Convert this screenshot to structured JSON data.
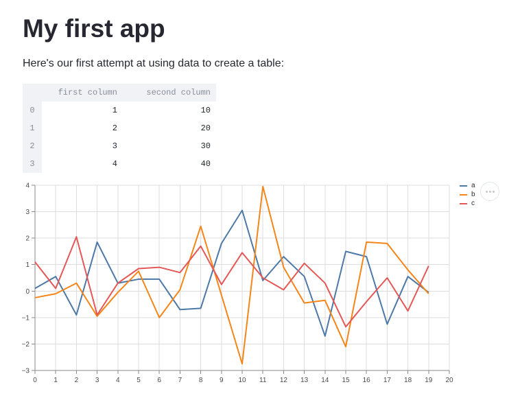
{
  "page": {
    "title": "My first app",
    "intro_text": "Here's our first attempt at using data to create a table:"
  },
  "table": {
    "columns": [
      "first column",
      "second column"
    ],
    "rows": [
      [
        "0",
        "1",
        "10"
      ],
      [
        "1",
        "2",
        "20"
      ],
      [
        "2",
        "3",
        "30"
      ],
      [
        "3",
        "4",
        "40"
      ]
    ]
  },
  "chart_data": {
    "type": "line",
    "title": "",
    "xlabel": "",
    "ylabel": "",
    "xlim": [
      0,
      20
    ],
    "ylim": [
      -3,
      4
    ],
    "x_ticks": [
      0,
      1,
      2,
      3,
      4,
      5,
      6,
      7,
      8,
      9,
      10,
      11,
      12,
      13,
      14,
      15,
      16,
      17,
      18,
      19,
      20
    ],
    "y_ticks": [
      -3,
      -2,
      -1,
      0,
      1,
      2,
      3,
      4
    ],
    "grid": true,
    "legend_position": "top-right",
    "x": [
      0,
      1,
      2,
      3,
      4,
      5,
      6,
      7,
      8,
      9,
      10,
      11,
      12,
      13,
      14,
      15,
      16,
      17,
      18,
      19
    ],
    "series": [
      {
        "name": "a",
        "color": "#4c78a8",
        "values": [
          0.1,
          0.55,
          -0.9,
          1.85,
          0.3,
          0.45,
          0.45,
          -0.7,
          -0.65,
          1.8,
          3.05,
          0.4,
          1.3,
          0.55,
          -1.7,
          1.5,
          1.3,
          -1.25,
          0.55,
          -0.05
        ]
      },
      {
        "name": "b",
        "color": "#f58518",
        "values": [
          -0.25,
          -0.1,
          0.3,
          -0.95,
          -0.05,
          0.75,
          -1.0,
          0.05,
          2.45,
          -0.15,
          -2.75,
          3.95,
          0.9,
          -0.45,
          -0.35,
          -2.1,
          1.85,
          1.8,
          0.8,
          -0.1
        ]
      },
      {
        "name": "c",
        "color": "#e45756",
        "values": [
          1.1,
          0.1,
          2.05,
          -0.9,
          0.3,
          0.85,
          0.9,
          0.7,
          1.7,
          0.25,
          1.45,
          0.5,
          0.05,
          1.05,
          0.3,
          -1.35,
          -0.4,
          0.5,
          -0.75,
          0.95
        ]
      }
    ],
    "colors": {
      "grid": "#dddddd",
      "axis": "#888888",
      "label": "#494949"
    }
  },
  "chart_menu": {
    "icon": "ellipsis"
  }
}
